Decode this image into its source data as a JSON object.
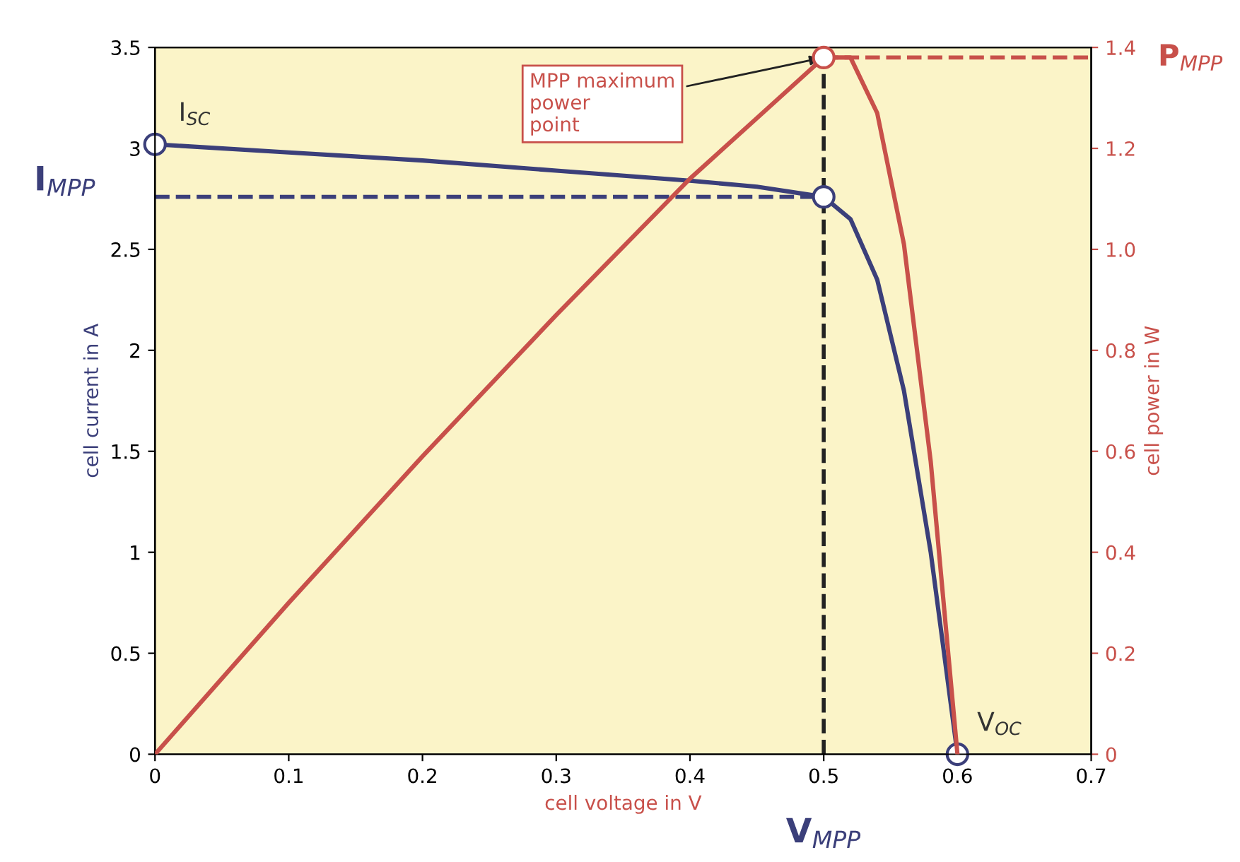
{
  "chart_data": {
    "type": "line",
    "xlabel": "cell voltage in V",
    "ylabel": "cell current in A",
    "y2label": "cell power in W",
    "xlim": [
      0,
      0.7
    ],
    "xticks": [
      0,
      0.1,
      0.2,
      0.3,
      0.4,
      0.5,
      0.6,
      0.7
    ],
    "ylim": [
      0,
      3.5
    ],
    "yticks": [
      0,
      0.5,
      1,
      1.5,
      2,
      2.5,
      3,
      3.5
    ],
    "y2lim": [
      0,
      1.4
    ],
    "y2ticks": [
      0,
      0.2,
      0.4,
      0.6,
      0.8,
      {
        "value": 1,
        "label": "1.0"
      },
      1.2,
      1.4
    ],
    "grid": false,
    "marker": "none",
    "line_style": "solid",
    "series": [
      {
        "color": "#3b3f7a",
        "x": [
          0,
          0.1,
          0.2,
          0.3,
          0.4,
          0.45,
          0.5,
          0.52,
          0.54,
          0.56,
          0.58,
          0.6
        ],
        "values": [
          3.02,
          2.98,
          2.94,
          2.89,
          2.84,
          2.81,
          2.76,
          2.65,
          2.35,
          1.8,
          1.0,
          0
        ]
      },
      {
        "color": "#c8504a",
        "axis": "y2",
        "x": [
          0,
          0.1,
          0.2,
          0.3,
          0.4,
          0.45,
          0.5,
          0.52,
          0.54,
          0.56,
          0.58,
          0.6
        ],
        "values": [
          0,
          0.3,
          0.59,
          0.87,
          1.14,
          1.26,
          1.38,
          1.38,
          1.27,
          1.01,
          0.58,
          0
        ]
      },
      {
        "type": "scatter",
        "marker": "circle",
        "color": "#3b3f7a",
        "x": [
          0,
          0.5,
          0.6
        ],
        "values": [
          3.02,
          2.76,
          0
        ]
      },
      {
        "type": "scatter",
        "marker": "circle",
        "color": "#c8504a",
        "axis": "y2",
        "x": [
          0.5
        ],
        "values": [
          1.38
        ]
      }
    ],
    "ref_lines": [
      {
        "axis": "y",
        "value": 2.76,
        "label": "I$_{MPP}$",
        "color": "#3b3f7a",
        "line_style": "dashed"
      },
      {
        "axis": "x",
        "value": 0.5,
        "label": "V$_{MPP}$",
        "color": "#222222",
        "line_style": "dashed"
      },
      {
        "axis": "y2",
        "value": 1.38,
        "label": "P$_{MPP}$",
        "color": "#c8504a",
        "line_style": "dashed"
      }
    ],
    "annotations": [
      {
        "text": "I$_{SC}$",
        "x": 0,
        "y": 3.02
      },
      {
        "text": "V$_{OC}$",
        "x": 0.6,
        "y": 0
      },
      {
        "text": "MPP maximum\npower\npoint",
        "x": 0.5,
        "y": 3.45
      }
    ]
  }
}
